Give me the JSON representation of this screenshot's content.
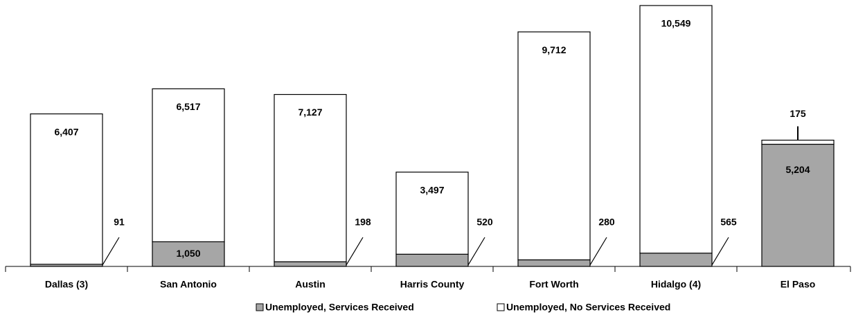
{
  "chart_data": {
    "type": "stacked_bar",
    "categories": [
      "Dallas (3)",
      "San Antonio",
      "Austin",
      "Harris County",
      "Fort Worth",
      "Hidalgo (4)",
      "El Paso"
    ],
    "series": [
      {
        "name": "Unemployed, Services Received",
        "color": "#a6a6a6",
        "values": [
          91,
          1050,
          198,
          520,
          280,
          565,
          5204
        ],
        "value_labels": [
          "91",
          "1,050",
          "198",
          "520",
          "280",
          "565",
          "5,204"
        ]
      },
      {
        "name": "Unemployed, No Services Received",
        "color": "#ffffff",
        "values": [
          6407,
          6517,
          7127,
          3497,
          9712,
          10549,
          175
        ],
        "value_labels": [
          "6,407",
          "6,517",
          "7,127",
          "3,497",
          "9,712",
          "10,549",
          "175"
        ]
      }
    ],
    "legend": "bottom"
  }
}
